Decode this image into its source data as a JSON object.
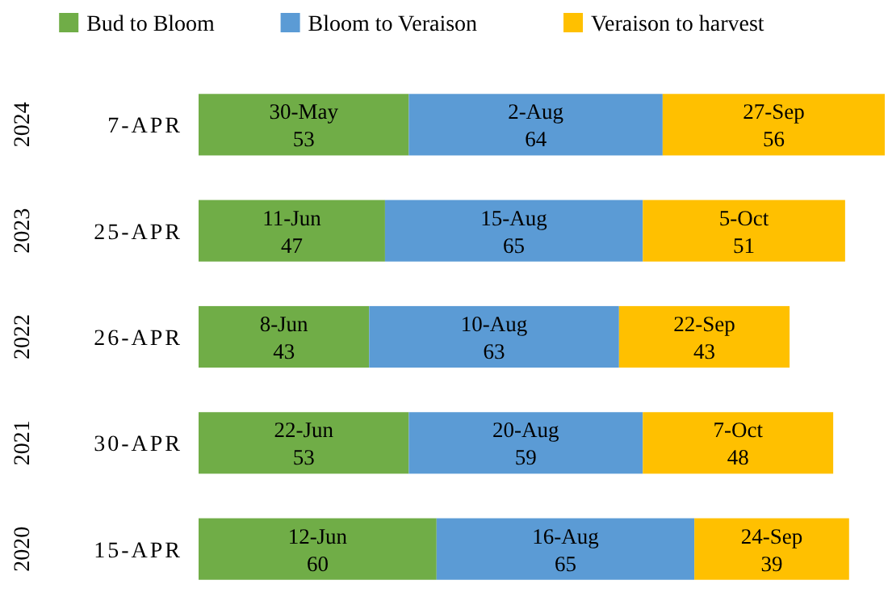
{
  "chart_data": {
    "type": "bar",
    "orientation": "horizontal",
    "stacked": true,
    "legend": "top",
    "categories": [
      "2024",
      "2023",
      "2022",
      "2021",
      "2020"
    ],
    "annotations": [
      "7-APR",
      "25-APR",
      "26-APR",
      "30-APR",
      "15-APR"
    ],
    "series": [
      {
        "name": "Bud to Bloom",
        "color": "#70ad47",
        "values": [
          53,
          47,
          43,
          53,
          60
        ],
        "value_labels": [
          "30-May\n53",
          "11-Jun\n47",
          "8-Jun\n43",
          "22-Jun\n53",
          "12-Jun\n60"
        ]
      },
      {
        "name": "Bloom to Veraison",
        "color": "#5b9bd5",
        "values": [
          64,
          65,
          63,
          59,
          65
        ],
        "value_labels": [
          "2-Aug\n64",
          "15-Aug\n65",
          "10-Aug\n63",
          "20-Aug\n59",
          "16-Aug\n65"
        ]
      },
      {
        "name": "Veraison to harvest",
        "color": "#ffc000",
        "values": [
          56,
          51,
          43,
          48,
          39
        ],
        "value_labels": [
          "27-Sep\n56",
          "5-Oct\n51",
          "22-Sep\n43",
          "7-Oct\n48",
          "24-Sep\n39"
        ]
      }
    ]
  }
}
